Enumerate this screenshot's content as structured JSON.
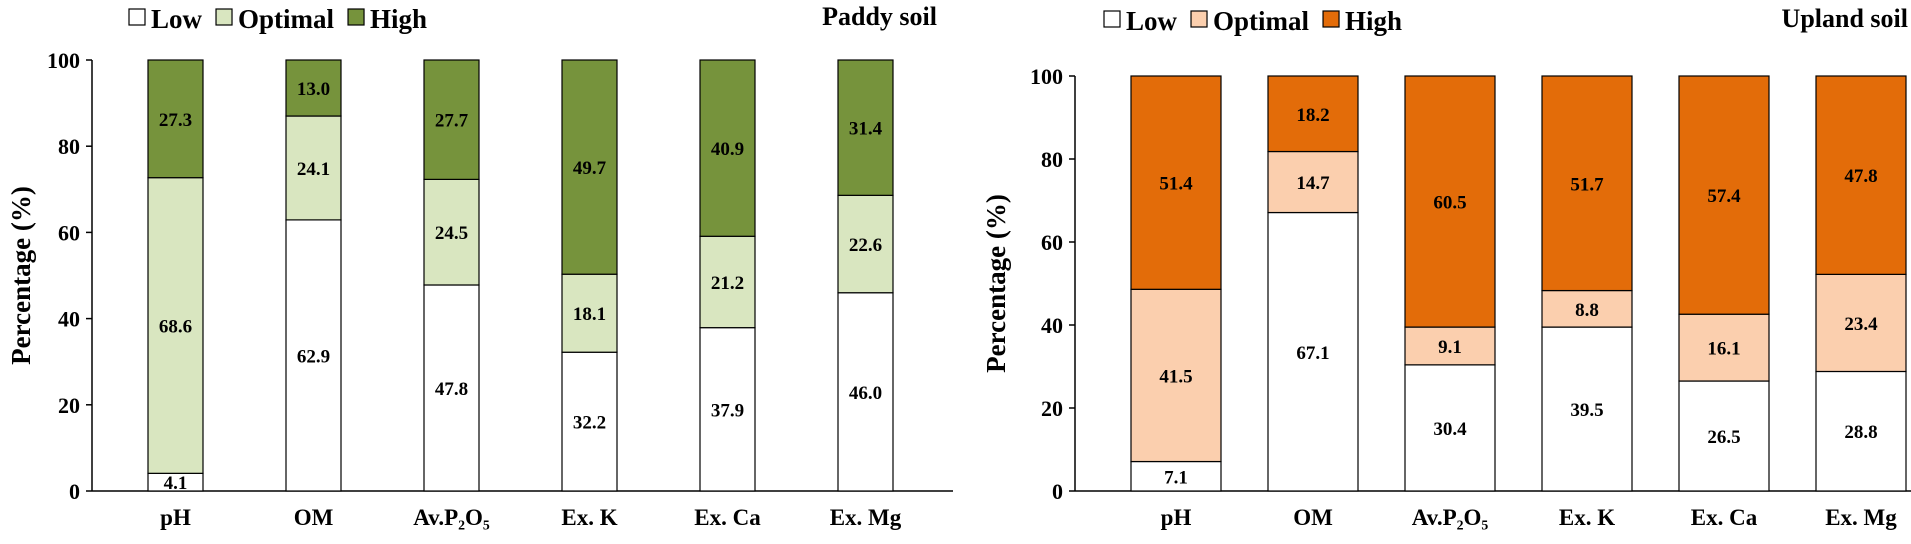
{
  "chart_data": [
    {
      "type": "bar",
      "stacked": true,
      "title": "Paddy soil",
      "ylabel": "Percentage (%)",
      "xlabel": "",
      "ylim": [
        0,
        100
      ],
      "yticks": [
        0,
        20,
        40,
        60,
        80,
        100
      ],
      "categories": [
        "pH",
        "OM",
        "Av.P₂O₅",
        "Ex. K",
        "Ex. Ca",
        "Ex. Mg"
      ],
      "legend_position": "top-left",
      "series": [
        {
          "name": "Low",
          "color": "#ffffff",
          "values": [
            4.1,
            62.9,
            47.8,
            32.2,
            37.9,
            46.0
          ],
          "labels": [
            "4.1",
            "62.9",
            "47.8",
            "32.2",
            "37.9",
            "46.0"
          ]
        },
        {
          "name": "Optimal",
          "color": "#d9e6c0",
          "values": [
            68.6,
            24.1,
            24.5,
            18.1,
            21.2,
            22.6
          ],
          "labels": [
            "68.6",
            "24.1",
            "24.5",
            "18.1",
            "21.2",
            "22.6"
          ]
        },
        {
          "name": "High",
          "color": "#76933c",
          "values": [
            27.3,
            13.0,
            27.7,
            49.7,
            40.9,
            31.4
          ],
          "labels": [
            "27.3",
            "13.0",
            "27.7",
            "49.7",
            "40.9",
            "31.4"
          ]
        }
      ]
    },
    {
      "type": "bar",
      "stacked": true,
      "title": "Upland soil",
      "ylabel": "Percentage (%)",
      "xlabel": "",
      "ylim": [
        0,
        100
      ],
      "yticks": [
        0,
        20,
        40,
        60,
        80,
        100
      ],
      "categories": [
        "pH",
        "OM",
        "Av.P₂O₅",
        "Ex. K",
        "Ex. Ca",
        "Ex. Mg"
      ],
      "legend_position": "top-left",
      "series": [
        {
          "name": "Low",
          "color": "#ffffff",
          "values": [
            7.1,
            67.1,
            30.4,
            39.5,
            26.5,
            28.8
          ],
          "labels": [
            "7.1",
            "67.1",
            "30.4",
            "39.5",
            "26.5",
            "28.8"
          ]
        },
        {
          "name": "Optimal",
          "color": "#fbcfae",
          "values": [
            41.5,
            14.7,
            9.1,
            8.8,
            16.1,
            23.4
          ],
          "labels": [
            "41.5",
            "14.7",
            "9.1",
            "8.8",
            "16.1",
            "23.4"
          ]
        },
        {
          "name": "High",
          "color": "#e36c09",
          "values": [
            51.4,
            18.2,
            60.5,
            51.7,
            57.4,
            47.8
          ],
          "labels": [
            "51.4",
            "18.2",
            "60.5",
            "51.7",
            "57.4",
            "47.8"
          ]
        }
      ]
    }
  ]
}
